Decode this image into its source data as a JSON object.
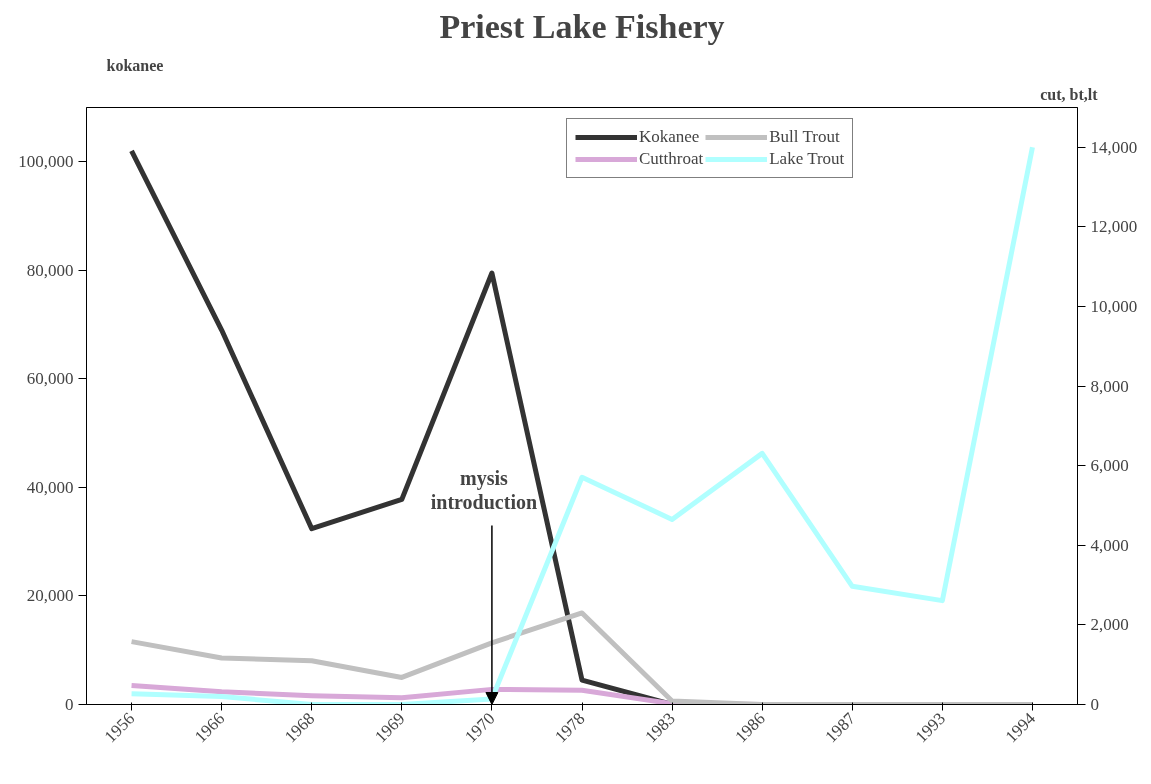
{
  "chart_data": {
    "type": "line",
    "title": "Priest Lake Fishery",
    "ylabel": "kokanee",
    "y2label": "cut, bt,lt",
    "categories": [
      "1956",
      "1966",
      "1968",
      "1969",
      "1970",
      "1978",
      "1983",
      "1986",
      "1987",
      "1993",
      "1994"
    ],
    "series": [
      {
        "name": "Kokanee",
        "color": "#333333",
        "values": [
          102000,
          69000,
          32400,
          37800,
          79500,
          4500,
          0,
          0,
          0,
          0,
          0
        ]
      },
      {
        "name": "Cutthroat",
        "color": "#d8a8d8",
        "axis": "y2",
        "values": [
          480,
          320,
          220,
          170,
          380,
          360,
          20,
          0,
          0,
          0,
          0
        ]
      },
      {
        "name": "Bull Trout",
        "color": "#c0c0c0",
        "axis": "y2",
        "values": [
          1580,
          1170,
          1100,
          680,
          1550,
          2300,
          90,
          0,
          0,
          0,
          0
        ]
      },
      {
        "name": "Lake Trout",
        "color": "#b0ffff",
        "axis": "y2",
        "values": [
          270,
          200,
          0,
          0,
          140,
          5710,
          4650,
          6310,
          2970,
          2610,
          14000
        ]
      }
    ],
    "ylim": [
      0,
      110000
    ],
    "yticks": [
      {
        "value": 0,
        "label": "0"
      },
      {
        "value": 20000,
        "label": "20,000"
      },
      {
        "value": 40000,
        "label": "40,000"
      },
      {
        "value": 60000,
        "label": "60,000"
      },
      {
        "value": 80000,
        "label": "80,000"
      },
      {
        "value": 100000,
        "label": "100,000"
      }
    ],
    "y2lim": [
      0,
      15000
    ],
    "y2ticks": [
      {
        "value": 0,
        "label": "0"
      },
      {
        "value": 2000,
        "label": "2,000"
      },
      {
        "value": 4000,
        "label": "4,000"
      },
      {
        "value": 6000,
        "label": "6,000"
      },
      {
        "value": 8000,
        "label": "8,000"
      },
      {
        "value": 10000,
        "label": "10,000"
      },
      {
        "value": 12000,
        "label": "12,000"
      },
      {
        "value": 14000,
        "label": "14,000"
      }
    ],
    "annotations": [
      {
        "text": "mysis\nintroduction",
        "x": "1970",
        "y": 0
      }
    ],
    "legend": "top right",
    "grid": false,
    "line_style": "solid",
    "marker": "none"
  }
}
